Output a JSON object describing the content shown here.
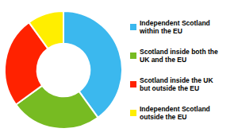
{
  "chart_data": {
    "type": "pie",
    "categories": [
      "Independent Scotland\nwithin the EU",
      "Scotland inside both the\nUK and the EU",
      "Scotland inside the UK\nbut outside the EU",
      "Independent Scotland\noutside the EU"
    ],
    "values": [
      40,
      25,
      25,
      10
    ],
    "colors": [
      "#3BB8EE",
      "#77BB22",
      "#FF2200",
      "#FFEE00"
    ],
    "legend": "right"
  }
}
